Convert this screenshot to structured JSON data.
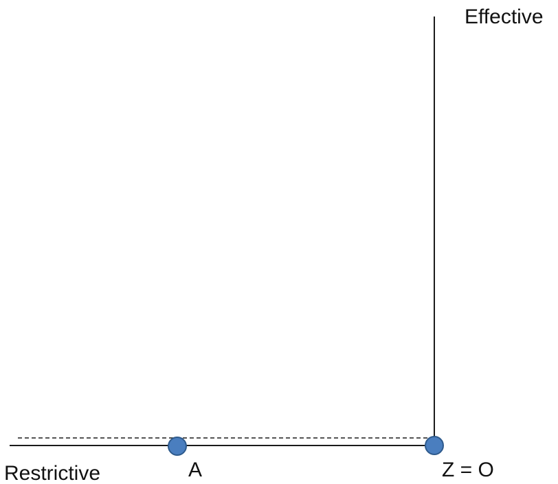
{
  "axes": {
    "horizontal_label": "Restrictive",
    "vertical_label": "Effective"
  },
  "points": [
    {
      "id": "A",
      "label": "A"
    },
    {
      "id": "Z",
      "label": "Z = O"
    }
  ],
  "colors": {
    "axis": "#1a1a1a",
    "point_fill": "#4a7ebf",
    "point_stroke": "#2e5a8c",
    "text": "#111111"
  }
}
